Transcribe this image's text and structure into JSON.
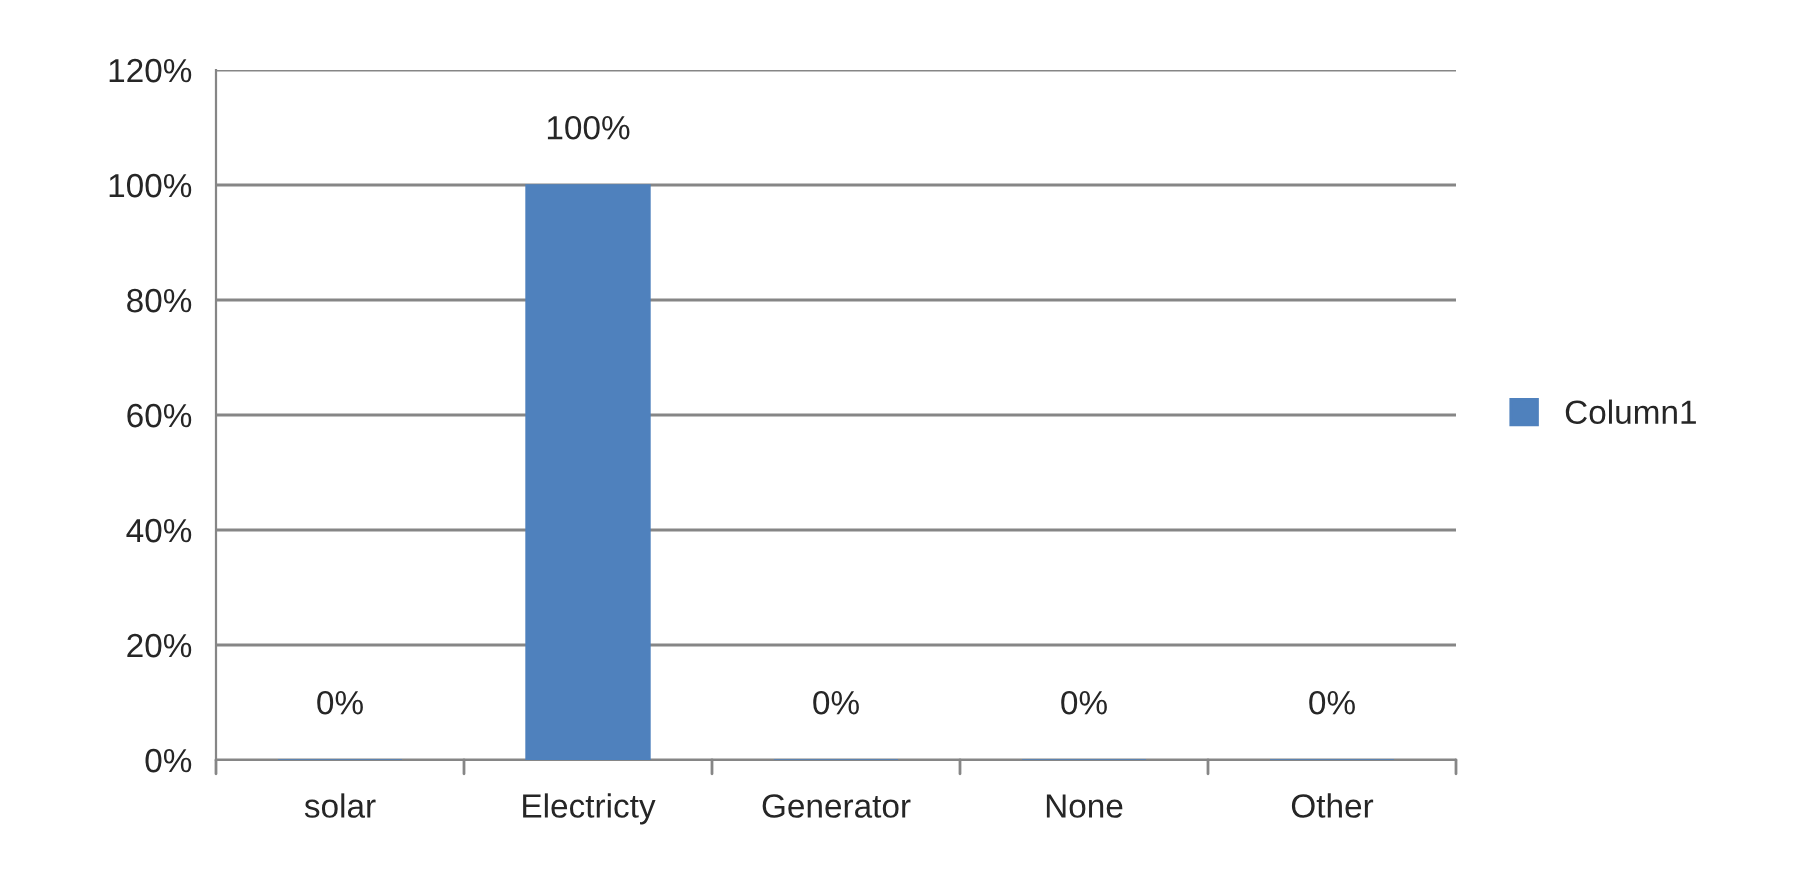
{
  "chart_data": {
    "type": "bar",
    "categories": [
      "solar",
      "Electricty",
      "Generator",
      "None",
      "Other"
    ],
    "series": [
      {
        "name": "Column1",
        "color": "#4f81bd",
        "values": [
          0,
          100,
          0,
          0,
          0
        ],
        "value_labels": [
          "0%",
          "100%",
          "0%",
          "0%",
          "0%"
        ]
      }
    ],
    "ylim": [
      0,
      120
    ],
    "yticks": [
      {
        "value": 0,
        "label": "0%"
      },
      {
        "value": 20,
        "label": "20%"
      },
      {
        "value": 40,
        "label": "40%"
      },
      {
        "value": 60,
        "label": "60%"
      },
      {
        "value": 80,
        "label": "80%"
      },
      {
        "value": 100,
        "label": "100%"
      },
      {
        "value": 120,
        "label": "120%"
      }
    ],
    "grid": "y",
    "legend": "right"
  }
}
